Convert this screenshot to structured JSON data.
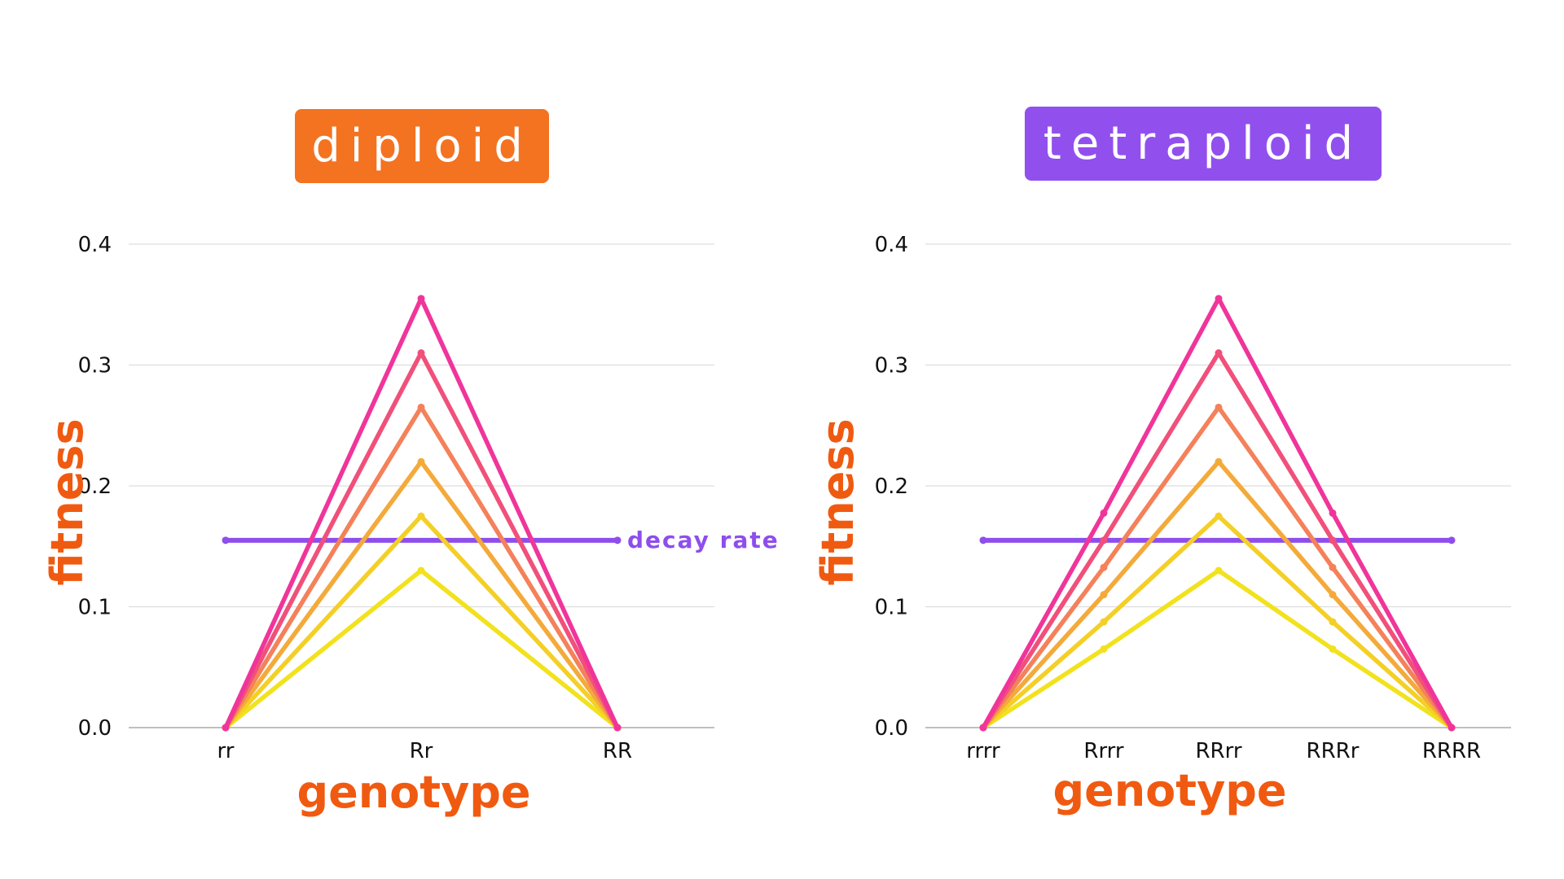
{
  "chart_data": [
    {
      "type": "line",
      "title": "diploid",
      "xlabel": "genotype",
      "ylabel": "fitness",
      "categories": [
        "rr",
        "Rr",
        "RR"
      ],
      "ylim": [
        0.0,
        0.4
      ],
      "yticks": [
        "0.0",
        "0.1",
        "0.2",
        "0.3",
        "0.4"
      ],
      "grid": true,
      "series": [
        {
          "values": [
            0.0,
            0.355,
            0.0
          ],
          "color": "#F0359A"
        },
        {
          "values": [
            0.0,
            0.31,
            0.0
          ],
          "color": "#F0507A"
        },
        {
          "values": [
            0.0,
            0.265,
            0.0
          ],
          "color": "#F4815A"
        },
        {
          "values": [
            0.0,
            0.22,
            0.0
          ],
          "color": "#F4AA3A"
        },
        {
          "values": [
            0.0,
            0.175,
            0.0
          ],
          "color": "#F4CF26"
        },
        {
          "values": [
            0.0,
            0.13,
            0.0
          ],
          "color": "#F2E21E"
        }
      ],
      "reference_line": {
        "label": "decay rate",
        "value": 0.155,
        "color": "#8E4EEC"
      }
    },
    {
      "type": "line",
      "title": "tetraploid",
      "xlabel": "genotype",
      "ylabel": "fitness",
      "categories": [
        "rrrr",
        "Rrrr",
        "RRrr",
        "RRRr",
        "RRRR"
      ],
      "ylim": [
        0.0,
        0.4
      ],
      "yticks": [
        "0.0",
        "0.1",
        "0.2",
        "0.3",
        "0.4"
      ],
      "grid": true,
      "series": [
        {
          "values": [
            0.0,
            0.1775,
            0.355,
            0.1775,
            0.0
          ],
          "color": "#F0359A"
        },
        {
          "values": [
            0.0,
            0.155,
            0.31,
            0.155,
            0.0
          ],
          "color": "#F0507A"
        },
        {
          "values": [
            0.0,
            0.1325,
            0.265,
            0.1325,
            0.0
          ],
          "color": "#F4815A"
        },
        {
          "values": [
            0.0,
            0.11,
            0.22,
            0.11,
            0.0
          ],
          "color": "#F4AA3A"
        },
        {
          "values": [
            0.0,
            0.0875,
            0.175,
            0.0875,
            0.0
          ],
          "color": "#F4CF26"
        },
        {
          "values": [
            0.0,
            0.065,
            0.13,
            0.065,
            0.0
          ],
          "color": "#F2E21E"
        }
      ],
      "reference_line": {
        "value": 0.155,
        "color": "#8E4EEC"
      }
    }
  ],
  "colors": {
    "diploid_badge": "#F37321",
    "tetraploid_badge": "#9150EE",
    "axis_title": "#F05A10",
    "grid": "#DDDDDD",
    "baseline": "#AAAAAA"
  }
}
